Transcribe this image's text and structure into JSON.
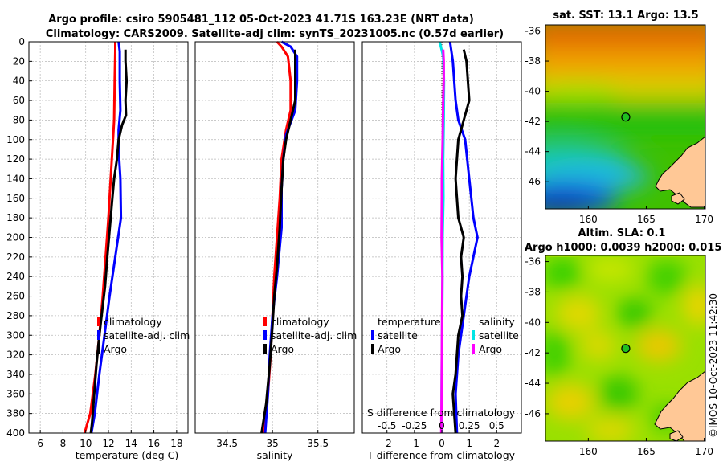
{
  "figure": {
    "title_line1": "Argo profile: csiro 5905481_112 05-Oct-2023 41.71S 163.23E (NRT data)",
    "title_line2": "Climatology: CARS2009. Satellite-adj clim: synTS_20231005.nc (0.57d earlier)",
    "credit": "©IMOS 10-Oct-2023 11:42:30"
  },
  "chart_data": [
    {
      "id": "temperature",
      "type": "line",
      "xlabel": "temperature (deg C)",
      "xlim": [
        5,
        19
      ],
      "xticks": [
        6,
        8,
        10,
        12,
        14,
        16,
        18
      ],
      "ylim": [
        0,
        400
      ],
      "yticks": [
        0,
        20,
        40,
        60,
        80,
        100,
        120,
        140,
        160,
        180,
        200,
        220,
        240,
        260,
        280,
        300,
        320,
        340,
        360,
        380,
        400
      ],
      "y_reversed": true,
      "legend": [
        "climatology",
        "satellite-adj. clim",
        "Argo"
      ],
      "legend_location": "center-right",
      "series": [
        {
          "name": "climatology",
          "color": "#ff0000",
          "points": [
            [
              12.6,
              0
            ],
            [
              12.6,
              10
            ],
            [
              12.55,
              40
            ],
            [
              12.5,
              80
            ],
            [
              12.4,
              100
            ],
            [
              12.2,
              140
            ],
            [
              12.0,
              180
            ],
            [
              11.75,
              220
            ],
            [
              11.5,
              260
            ],
            [
              11.2,
              300
            ],
            [
              10.85,
              340
            ],
            [
              10.4,
              380
            ],
            [
              9.9,
              400
            ]
          ]
        },
        {
          "name": "satellite-adj. clim",
          "color": "#0000ff",
          "points": [
            [
              12.9,
              0
            ],
            [
              13.0,
              10
            ],
            [
              13.0,
              40
            ],
            [
              13.05,
              70
            ],
            [
              12.9,
              90
            ],
            [
              12.9,
              110
            ],
            [
              13.05,
              140
            ],
            [
              13.1,
              180
            ],
            [
              12.6,
              220
            ],
            [
              12.1,
              260
            ],
            [
              11.65,
              300
            ],
            [
              11.2,
              340
            ],
            [
              10.8,
              380
            ],
            [
              10.5,
              400
            ]
          ]
        },
        {
          "name": "Argo",
          "color": "#000000",
          "points": [
            [
              13.5,
              8
            ],
            [
              13.5,
              20
            ],
            [
              13.6,
              40
            ],
            [
              13.5,
              60
            ],
            [
              13.55,
              75
            ],
            [
              13.2,
              85
            ],
            [
              12.9,
              100
            ],
            [
              12.75,
              120
            ],
            [
              12.5,
              140
            ],
            [
              12.35,
              160
            ],
            [
              12.2,
              180
            ],
            [
              12.05,
              200
            ],
            [
              11.9,
              220
            ],
            [
              11.7,
              250
            ],
            [
              11.45,
              275
            ],
            [
              11.2,
              300
            ],
            [
              10.95,
              330
            ],
            [
              10.75,
              360
            ],
            [
              10.55,
              390
            ],
            [
              10.45,
              400
            ]
          ]
        }
      ]
    },
    {
      "id": "salinity",
      "type": "line",
      "xlabel": "salinity",
      "xlim": [
        34.15,
        35.9
      ],
      "xticks": [
        34.5,
        35,
        35.5
      ],
      "ylim": [
        0,
        400
      ],
      "y_reversed": true,
      "legend": [
        "climatology",
        "satellite-adj. clim",
        "Argo"
      ],
      "legend_location": "center-right",
      "series": [
        {
          "name": "climatology",
          "color": "#ff0000",
          "points": [
            [
              35.05,
              0
            ],
            [
              35.1,
              5
            ],
            [
              35.17,
              15
            ],
            [
              35.2,
              40
            ],
            [
              35.2,
              70
            ],
            [
              35.15,
              90
            ],
            [
              35.1,
              120
            ],
            [
              35.08,
              160
            ],
            [
              35.05,
              200
            ],
            [
              35.02,
              240
            ],
            [
              35.0,
              280
            ],
            [
              34.98,
              320
            ],
            [
              34.95,
              360
            ],
            [
              34.9,
              400
            ]
          ]
        },
        {
          "name": "satellite-adj. clim",
          "color": "#0000ff",
          "points": [
            [
              35.1,
              0
            ],
            [
              35.2,
              5
            ],
            [
              35.27,
              15
            ],
            [
              35.27,
              40
            ],
            [
              35.25,
              70
            ],
            [
              35.15,
              95
            ],
            [
              35.12,
              120
            ],
            [
              35.1,
              150
            ],
            [
              35.1,
              190
            ],
            [
              35.05,
              240
            ],
            [
              35.0,
              280
            ],
            [
              34.97,
              320
            ],
            [
              34.95,
              360
            ],
            [
              34.92,
              400
            ]
          ]
        },
        {
          "name": "Argo",
          "color": "#000000",
          "points": [
            [
              35.25,
              8
            ],
            [
              35.25,
              20
            ],
            [
              35.25,
              40
            ],
            [
              35.25,
              60
            ],
            [
              35.2,
              80
            ],
            [
              35.15,
              100
            ],
            [
              35.12,
              120
            ],
            [
              35.1,
              150
            ],
            [
              35.08,
              190
            ],
            [
              35.05,
              230
            ],
            [
              35.02,
              260
            ],
            [
              35.0,
              290
            ],
            [
              34.97,
              330
            ],
            [
              34.93,
              370
            ],
            [
              34.88,
              400
            ]
          ]
        }
      ]
    },
    {
      "id": "difference",
      "type": "line",
      "xlabel": "T difference from climatology",
      "xlim": [
        -2.9,
        2.9
      ],
      "xticks": [
        -2,
        -1,
        0,
        1,
        2
      ],
      "secondary_xlabel": "S difference from climatology",
      "secondary_xticks": [
        -0.5,
        -0.25,
        0,
        0.25,
        0.5
      ],
      "secondary_xlim": [
        -0.725,
        0.725
      ],
      "ylim": [
        0,
        400
      ],
      "y_reversed": true,
      "legend_temperature_title": "temperature",
      "legend_salinity_title": "salinity",
      "legend_temperature": [
        "satellite",
        "Argo"
      ],
      "legend_salinity": [
        "satellite",
        "Argo"
      ],
      "legend_location": "center",
      "series": [
        {
          "name": "T satellite",
          "color": "#0000ff",
          "points": [
            [
              0.3,
              0
            ],
            [
              0.4,
              20
            ],
            [
              0.5,
              60
            ],
            [
              0.6,
              80
            ],
            [
              0.85,
              100
            ],
            [
              1.0,
              140
            ],
            [
              1.15,
              180
            ],
            [
              1.3,
              200
            ],
            [
              1.0,
              240
            ],
            [
              0.8,
              280
            ],
            [
              0.6,
              320
            ],
            [
              0.5,
              360
            ],
            [
              0.55,
              400
            ]
          ]
        },
        {
          "name": "T Argo",
          "color": "#000000",
          "points": [
            [
              0.8,
              8
            ],
            [
              0.9,
              20
            ],
            [
              1.0,
              60
            ],
            [
              0.8,
              80
            ],
            [
              0.6,
              100
            ],
            [
              0.5,
              140
            ],
            [
              0.6,
              180
            ],
            [
              0.8,
              200
            ],
            [
              0.7,
              220
            ],
            [
              0.75,
              240
            ],
            [
              0.7,
              260
            ],
            [
              0.75,
              280
            ],
            [
              0.6,
              300
            ],
            [
              0.5,
              340
            ],
            [
              0.4,
              360
            ],
            [
              0.45,
              380
            ],
            [
              0.5,
              400
            ]
          ]
        },
        {
          "name": "S satellite",
          "color": "#00e5e5",
          "points": [
            [
              -0.08,
              0
            ],
            [
              0.05,
              15
            ],
            [
              0.08,
              40
            ],
            [
              0.07,
              80
            ],
            [
              0.05,
              120
            ],
            [
              0.06,
              160
            ],
            [
              0.03,
              200
            ],
            [
              0.02,
              260
            ],
            [
              0.0,
              320
            ],
            [
              -0.01,
              360
            ],
            [
              0.0,
              400
            ]
          ]
        },
        {
          "name": "S Argo",
          "color": "#ff00ff",
          "points": [
            [
              0.05,
              8
            ],
            [
              0.07,
              20
            ],
            [
              0.07,
              40
            ],
            [
              0.05,
              60
            ],
            [
              0.03,
              100
            ],
            [
              0.0,
              140
            ],
            [
              0.0,
              160
            ],
            [
              -0.01,
              200
            ],
            [
              0.02,
              240
            ],
            [
              0.01,
              280
            ],
            [
              0.0,
              320
            ],
            [
              -0.01,
              360
            ],
            [
              -0.02,
              400
            ]
          ]
        }
      ]
    },
    {
      "id": "sst_map",
      "type": "heatmap",
      "title": "sat. SST: 13.1 Argo: 13.5",
      "xticks": [
        160,
        165,
        170
      ],
      "yticks": [
        -36,
        -38,
        -40,
        -42,
        -44,
        -46
      ],
      "xlim": [
        156.3,
        170.1
      ],
      "ylim": [
        -47.8,
        -35.6
      ],
      "marker_lon": 163.23,
      "marker_lat": -41.71
    },
    {
      "id": "sla_map",
      "type": "heatmap",
      "title": "Altim. SLA: 0.1",
      "subtitle": "Argo h1000: 0.0039 h2000: 0.015",
      "xticks": [
        160,
        165,
        170
      ],
      "yticks": [
        -36,
        -38,
        -40,
        -42,
        -44,
        -46
      ],
      "xlim": [
        156.3,
        170.1
      ],
      "ylim": [
        -47.8,
        -35.6
      ],
      "marker_lon": 163.23,
      "marker_lat": -41.71
    }
  ]
}
